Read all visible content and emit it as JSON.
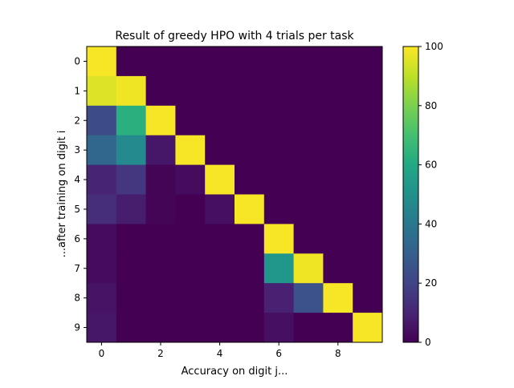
{
  "chart_data": {
    "type": "heatmap",
    "title": "Result of greedy HPO with 4 trials per task",
    "xlabel": "Accuracy on digit j...",
    "ylabel": "...after training on digit i",
    "rows": [
      0,
      1,
      2,
      3,
      4,
      5,
      6,
      7,
      8,
      9
    ],
    "cols": [
      0,
      1,
      2,
      3,
      4,
      5,
      6,
      7,
      8,
      9
    ],
    "x_ticks": [
      "0",
      "2",
      "4",
      "6",
      "8"
    ],
    "y_ticks": [
      "0",
      "1",
      "2",
      "3",
      "4",
      "5",
      "6",
      "7",
      "8",
      "9"
    ],
    "values": [
      [
        99,
        0,
        0,
        0,
        0,
        0,
        0,
        0,
        0,
        0
      ],
      [
        95,
        98,
        0,
        0,
        0,
        0,
        0,
        0,
        0,
        0
      ],
      [
        23,
        63,
        99,
        0,
        0,
        0,
        0,
        0,
        0,
        0
      ],
      [
        33,
        47,
        6,
        99,
        0,
        0,
        0,
        0,
        0,
        0
      ],
      [
        10,
        16,
        1,
        3,
        99,
        0,
        0,
        0,
        0,
        0
      ],
      [
        13,
        8,
        1,
        0,
        4,
        99,
        0,
        0,
        0,
        0
      ],
      [
        3,
        0,
        0,
        0,
        0,
        0,
        99,
        0,
        0,
        0
      ],
      [
        3,
        0,
        0,
        0,
        0,
        0,
        52,
        98,
        0,
        0
      ],
      [
        5,
        0,
        0,
        0,
        0,
        0,
        9,
        25,
        99,
        0
      ],
      [
        6,
        0,
        0,
        0,
        0,
        0,
        4,
        0,
        0,
        99
      ]
    ],
    "colorbar": {
      "colormap": "viridis",
      "min": 0,
      "max": 100,
      "ticks": [
        "0",
        "20",
        "40",
        "60",
        "80",
        "100"
      ]
    }
  }
}
